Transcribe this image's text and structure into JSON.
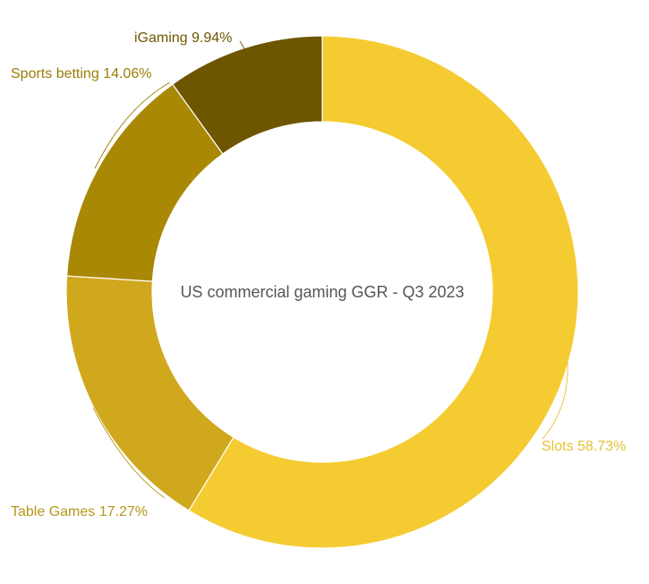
{
  "chart_data": {
    "type": "pie",
    "variant": "donut",
    "center_title": "US commercial gaming GGR - Q3 2023",
    "slices": [
      {
        "label": "Slots",
        "value": 58.73,
        "display": "Slots 58.73%",
        "color": "#F5CB32"
      },
      {
        "label": "Table Games",
        "value": 17.27,
        "display": "Table Games 17.27%",
        "color": "#D0A81D"
      },
      {
        "label": "Sports betting",
        "value": 14.06,
        "display": "Sports betting 14.06%",
        "color": "#A98805"
      },
      {
        "label": "iGaming",
        "value": 9.94,
        "display": "iGaming 9.94%",
        "color": "#6E5500"
      }
    ],
    "label_colors": [
      "#E8C038",
      "#B8961A",
      "#9C7D06",
      "#6E5500"
    ],
    "center_text_color": "#555555",
    "legend": "none"
  }
}
